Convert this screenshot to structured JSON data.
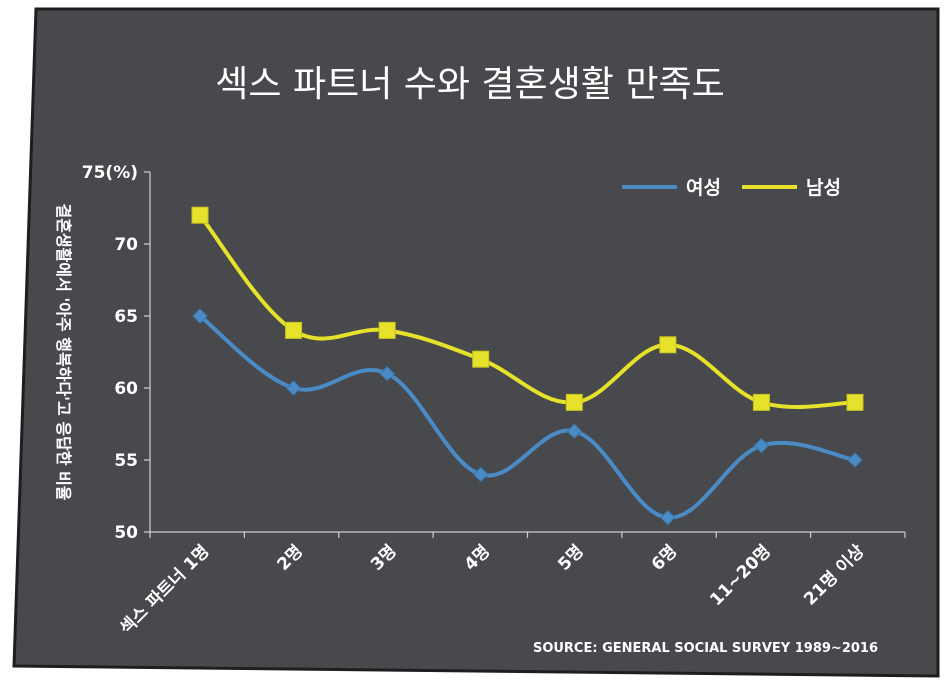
{
  "chart_data": {
    "type": "line",
    "title": "섹스 파트너 수와 결혼생활 만족도",
    "ylabel": "결혼생활에서 '아주 행복하다'고 응답한 비율",
    "ylim": [
      50,
      75
    ],
    "yticks": [
      "50",
      "55",
      "60",
      "65",
      "70",
      "75(%)"
    ],
    "ytick_values": [
      50,
      55,
      60,
      65,
      70,
      75
    ],
    "categories": [
      "섹스 파트너 1명",
      "2명",
      "3명",
      "4명",
      "5명",
      "6명",
      "11~20명",
      "21명 이상"
    ],
    "series": [
      {
        "name": "여성",
        "color": "#4a8bc6",
        "marker": "diamond",
        "values": [
          65,
          60,
          61,
          54,
          57,
          51,
          56,
          55
        ]
      },
      {
        "name": "남성",
        "color": "#e6e12a",
        "marker": "square",
        "values": [
          72,
          64,
          64,
          62,
          59,
          63,
          59,
          59
        ]
      }
    ],
    "legend_position": "top-right",
    "grid": false,
    "source": "SOURCE: GENERAL SOCIAL SURVEY 1989~2016"
  },
  "colors": {
    "panel_background": "#48494d",
    "border": "#1e1e1e",
    "text": "#ffffff",
    "axis": "#cfcfcf"
  }
}
